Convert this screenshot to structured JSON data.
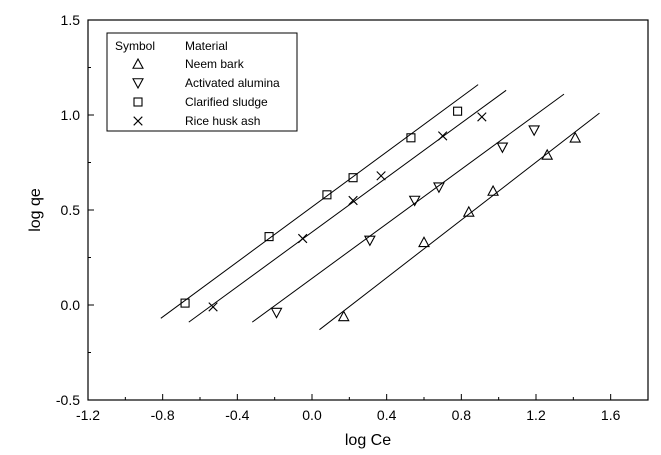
{
  "chart_data": {
    "type": "scatter",
    "xlabel": "log Ce",
    "ylabel": "log qe",
    "xlim": [
      -1.2,
      1.8
    ],
    "ylim": [
      -0.5,
      1.5
    ],
    "x_ticks": [
      "-1.2",
      "-0.8",
      "-0.4",
      "0.0",
      "0.4",
      "0.8",
      "1.2",
      "1.6"
    ],
    "y_ticks": [
      "-0.5",
      "0.0",
      "0.5",
      "1.0",
      "1.5"
    ],
    "grid": false,
    "legend": {
      "placement": "top-left",
      "header_symbol": "Symbol",
      "header_material": "Material"
    },
    "series": [
      {
        "name": "Neem bark",
        "marker": "triangle-up",
        "points": [
          [
            0.17,
            -0.06
          ],
          [
            0.6,
            0.33
          ],
          [
            0.84,
            0.49
          ],
          [
            0.97,
            0.6
          ],
          [
            1.26,
            0.79
          ],
          [
            1.41,
            0.88
          ]
        ],
        "fit": [
          [
            0.04,
            -0.13
          ],
          [
            1.54,
            1.01
          ]
        ]
      },
      {
        "name": "Activated alumina",
        "marker": "triangle-down",
        "points": [
          [
            -0.19,
            -0.04
          ],
          [
            0.31,
            0.34
          ],
          [
            0.55,
            0.55
          ],
          [
            0.68,
            0.62
          ],
          [
            1.02,
            0.83
          ],
          [
            1.19,
            0.92
          ]
        ],
        "fit": [
          [
            -0.32,
            -0.09
          ],
          [
            1.35,
            1.11
          ]
        ]
      },
      {
        "name": "Clarified sludge",
        "marker": "square",
        "points": [
          [
            -0.68,
            0.01
          ],
          [
            -0.23,
            0.36
          ],
          [
            0.08,
            0.58
          ],
          [
            0.22,
            0.67
          ],
          [
            0.53,
            0.88
          ],
          [
            0.78,
            1.02
          ]
        ],
        "fit": [
          [
            -0.81,
            -0.07
          ],
          [
            0.89,
            1.16
          ]
        ]
      },
      {
        "name": "Rice husk ash",
        "marker": "x",
        "points": [
          [
            -0.53,
            -0.01
          ],
          [
            -0.05,
            0.35
          ],
          [
            0.22,
            0.55
          ],
          [
            0.37,
            0.68
          ],
          [
            0.7,
            0.89
          ],
          [
            0.91,
            0.99
          ]
        ],
        "fit": [
          [
            -0.66,
            -0.09
          ],
          [
            1.04,
            1.13
          ]
        ]
      }
    ]
  }
}
